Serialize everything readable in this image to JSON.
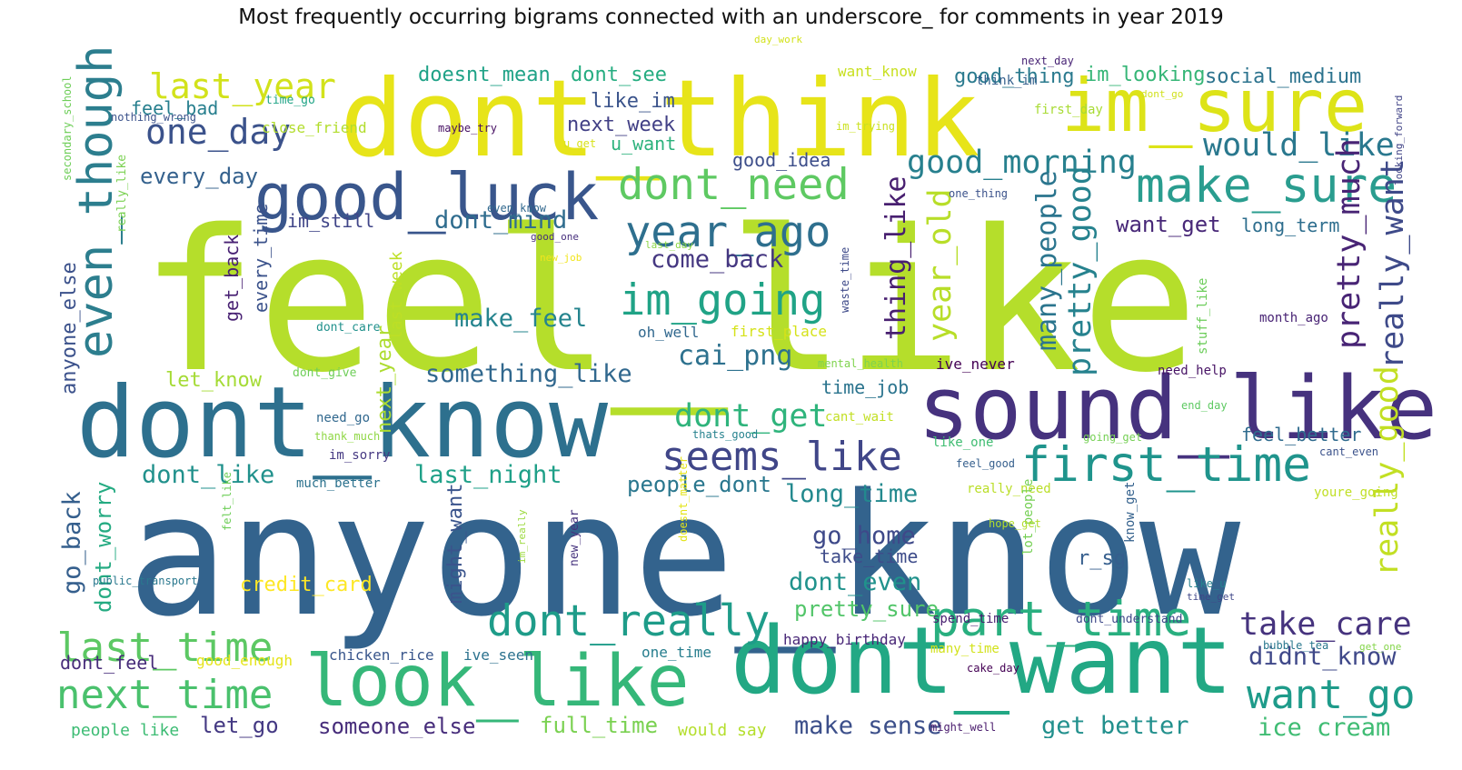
{
  "title": "Most frequently occurring bigrams connected with an underscore_ for comments in year 2019",
  "words": [
    {
      "text": "feel_like",
      "color": "#b5de2b"
    },
    {
      "text": "anyone_know",
      "color": "#33638d"
    },
    {
      "text": "dont_think",
      "color": "#e7e419"
    },
    {
      "text": "dont_know",
      "color": "#2d708e"
    },
    {
      "text": "dont_want",
      "color": "#22a884"
    },
    {
      "text": "sound_like",
      "color": "#46327e"
    },
    {
      "text": "im_sure",
      "color": "#dde318"
    },
    {
      "text": "look_like",
      "color": "#35b779"
    },
    {
      "text": "good_luck",
      "color": "#39568c"
    },
    {
      "text": "make_sure",
      "color": "#2a9d8f"
    },
    {
      "text": "first_time",
      "color": "#1f948c"
    },
    {
      "text": "part_time",
      "color": "#29af7f"
    },
    {
      "text": "even_though",
      "color": "#2c7e8e"
    },
    {
      "text": "dont_need",
      "color": "#5ec962"
    },
    {
      "text": "year_ago",
      "color": "#2e6f8e"
    },
    {
      "text": "im_going",
      "color": "#20a386"
    },
    {
      "text": "dont_really",
      "color": "#1e9c89"
    },
    {
      "text": "seems_like",
      "color": "#404688"
    },
    {
      "text": "next_time",
      "color": "#4ac16d"
    },
    {
      "text": "last_time",
      "color": "#5cc863"
    },
    {
      "text": "want_go",
      "color": "#1e9b8a"
    },
    {
      "text": "last_year",
      "color": "#d2e21b"
    },
    {
      "text": "one_day",
      "color": "#3b528b"
    },
    {
      "text": "good_morning",
      "color": "#27808e"
    },
    {
      "text": "would_like",
      "color": "#2a788e"
    },
    {
      "text": "take_care",
      "color": "#46337e"
    },
    {
      "text": "dont_get",
      "color": "#2fb47c"
    },
    {
      "text": "really_want",
      "color": "#3e4a89"
    },
    {
      "text": "pretty_much",
      "color": "#482475"
    },
    {
      "text": "really_good",
      "color": "#c2df23"
    },
    {
      "text": "pretty_good",
      "color": "#26828e"
    },
    {
      "text": "year_old",
      "color": "#b8de29"
    },
    {
      "text": "thing_like",
      "color": "#481f70"
    },
    {
      "text": "many_people",
      "color": "#2b758e"
    },
    {
      "text": "cai_png",
      "color": "#2d718e"
    },
    {
      "text": "come_back",
      "color": "#453781"
    },
    {
      "text": "make_feel",
      "color": "#25848e"
    },
    {
      "text": "something_like",
      "color": "#31688e"
    },
    {
      "text": "dont_mind",
      "color": "#2f6c8e"
    },
    {
      "text": "dont_like",
      "color": "#21918c"
    },
    {
      "text": "last_night",
      "color": "#1fa088"
    },
    {
      "text": "long_time",
      "color": "#23898e"
    },
    {
      "text": "go_home",
      "color": "#3e4989"
    },
    {
      "text": "dont_even",
      "color": "#20928c"
    },
    {
      "text": "pretty_sure",
      "color": "#52c569"
    },
    {
      "text": "people_dont",
      "color": "#2a778e"
    },
    {
      "text": "didnt_know",
      "color": "#3f4889"
    },
    {
      "text": "ice_cream",
      "color": "#3fbc73"
    },
    {
      "text": "get_better",
      "color": "#22908d"
    },
    {
      "text": "make_sense",
      "color": "#3c4f8a"
    },
    {
      "text": "full_time",
      "color": "#7ad151"
    },
    {
      "text": "someone_else",
      "color": "#472d7b"
    },
    {
      "text": "let_go",
      "color": "#443983"
    },
    {
      "text": "go_back",
      "color": "#355f8d"
    },
    {
      "text": "dont_worry",
      "color": "#25ab82"
    },
    {
      "text": "anyone_else",
      "color": "#3b518b"
    },
    {
      "text": "every_day",
      "color": "#34618d"
    },
    {
      "text": "want_get",
      "color": "#482878"
    },
    {
      "text": "social_medium",
      "color": "#2c738e"
    },
    {
      "text": "good_thing",
      "color": "#2a7a8e"
    },
    {
      "text": "im_looking",
      "color": "#36b677"
    },
    {
      "text": "doesnt_mean",
      "color": "#1fa287"
    },
    {
      "text": "dont_see",
      "color": "#26ad81"
    },
    {
      "text": "want_know",
      "color": "#c8e020"
    },
    {
      "text": "like_im",
      "color": "#3a538b"
    },
    {
      "text": "next_week",
      "color": "#424086"
    },
    {
      "text": "u_want",
      "color": "#2db27d"
    },
    {
      "text": "good_idea",
      "color": "#3d4e8a"
    },
    {
      "text": "feel_bad",
      "color": "#277f8e"
    },
    {
      "text": "im_still",
      "color": "#404588"
    },
    {
      "text": "long_term",
      "color": "#2e6e8e"
    },
    {
      "text": "let_know",
      "color": "#a5db36"
    },
    {
      "text": "next_year",
      "color": "#addc30"
    },
    {
      "text": "credit_card",
      "color": "#fde725"
    },
    {
      "text": "might_want",
      "color": "#3a548c"
    },
    {
      "text": "take_time",
      "color": "#3e4c8a"
    },
    {
      "text": "time_job",
      "color": "#2b748e"
    },
    {
      "text": "feel_better",
      "color": "#2f6b8e"
    },
    {
      "text": "r_sg",
      "color": "#355e8d"
    },
    {
      "text": "dont_feel",
      "color": "#472c7a"
    },
    {
      "text": "good_enough",
      "color": "#e5e419"
    },
    {
      "text": "chicken_rice",
      "color": "#39568c"
    },
    {
      "text": "ive_seen",
      "color": "#2c728e"
    },
    {
      "text": "one_time",
      "color": "#277e8e"
    },
    {
      "text": "happy_birthday",
      "color": "#482677"
    },
    {
      "text": "people_like",
      "color": "#3dbc74"
    },
    {
      "text": "would_say",
      "color": "#b4de2c"
    },
    {
      "text": "get_back",
      "color": "#482173"
    },
    {
      "text": "every_time",
      "color": "#3b528b"
    },
    {
      "text": "last_week",
      "color": "#bddf26"
    },
    {
      "text": "oh_well",
      "color": "#31688e"
    },
    {
      "text": "first_place",
      "color": "#d5e21a"
    },
    {
      "text": "ive_never",
      "color": "#440154"
    },
    {
      "text": "need_help",
      "color": "#471365"
    },
    {
      "text": "month_ago",
      "color": "#482374"
    },
    {
      "text": "dont_care",
      "color": "#21918c"
    },
    {
      "text": "dont_give",
      "color": "#6ece58"
    },
    {
      "text": "need_go",
      "color": "#31688e"
    },
    {
      "text": "im_sorry",
      "color": "#453882"
    },
    {
      "text": "much_better",
      "color": "#2c728e"
    },
    {
      "text": "thank_much",
      "color": "#8fd744"
    },
    {
      "text": "thats_good",
      "color": "#26828e"
    },
    {
      "text": "cant_wait",
      "color": "#c2df23"
    },
    {
      "text": "like_one",
      "color": "#40bd72"
    },
    {
      "text": "going_get",
      "color": "#75d054"
    },
    {
      "text": "cant_even",
      "color": "#3b528b"
    },
    {
      "text": "feel_good",
      "color": "#355f8d"
    },
    {
      "text": "really_need",
      "color": "#bade28"
    },
    {
      "text": "youre_going",
      "color": "#c0df25"
    },
    {
      "text": "end_day",
      "color": "#5ec962"
    },
    {
      "text": "stuff_like",
      "color": "#6ccd5a"
    },
    {
      "text": "mental_health",
      "color": "#7fd34e"
    },
    {
      "text": "waste_time",
      "color": "#3e4a89"
    },
    {
      "text": "time_go",
      "color": "#20a486"
    },
    {
      "text": "nothing_wrong",
      "color": "#3b528b"
    },
    {
      "text": "close_friend",
      "color": "#b2dd2d"
    },
    {
      "text": "maybe_try",
      "color": "#471063"
    },
    {
      "text": "u_get",
      "color": "#d8e219"
    },
    {
      "text": "im_trying",
      "color": "#cae11f"
    },
    {
      "text": "dont_go",
      "color": "#d0e11c"
    },
    {
      "text": "first_day",
      "color": "#a8db34"
    },
    {
      "text": "think_im",
      "color": "#35608d"
    },
    {
      "text": "next_day",
      "color": "#482475"
    },
    {
      "text": "day_work",
      "color": "#d2e21b"
    },
    {
      "text": "one_thing",
      "color": "#3b528b"
    },
    {
      "text": "even_know",
      "color": "#31688e"
    },
    {
      "text": "good_one",
      "color": "#472f7d"
    },
    {
      "text": "last_day",
      "color": "#8bd646"
    },
    {
      "text": "new_job",
      "color": "#f1e51d"
    },
    {
      "text": "secondary_school",
      "color": "#6ece58"
    },
    {
      "text": "looking_forward",
      "color": "#414487"
    },
    {
      "text": "really_like",
      "color": "#7ad151"
    },
    {
      "text": "public_transport",
      "color": "#2a788e"
    },
    {
      "text": "felt_like",
      "color": "#6ece58"
    },
    {
      "text": "new_year",
      "color": "#46337e"
    },
    {
      "text": "im_really",
      "color": "#9bd93c"
    },
    {
      "text": "doesnt_matter",
      "color": "#e3e418"
    },
    {
      "text": "lot_people",
      "color": "#75d054"
    },
    {
      "text": "know_get",
      "color": "#34618d"
    },
    {
      "text": "hope_get",
      "color": "#b2dd2d"
    },
    {
      "text": "like_u",
      "color": "#26828e"
    },
    {
      "text": "time_get",
      "color": "#3f4788"
    },
    {
      "text": "bubble_tea",
      "color": "#2a788e"
    },
    {
      "text": "get_one",
      "color": "#85d54a"
    },
    {
      "text": "spend_time",
      "color": "#482071"
    },
    {
      "text": "dont_understand",
      "color": "#3e4989"
    },
    {
      "text": "many_time",
      "color": "#d2e21b"
    },
    {
      "text": "cake_day",
      "color": "#440154"
    },
    {
      "text": "might_well",
      "color": "#481a6c"
    }
  ]
}
